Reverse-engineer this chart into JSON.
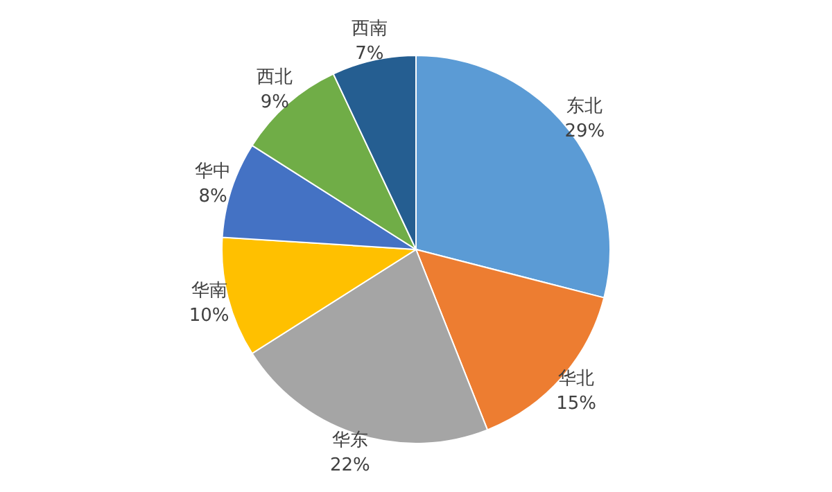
{
  "chart_data": {
    "type": "pie",
    "categories": [
      "东北",
      "华北",
      "华东",
      "华南",
      "华中",
      "西北",
      "西南"
    ],
    "values": [
      29,
      15,
      22,
      10,
      8,
      9,
      7
    ],
    "colors": [
      "#5b9bd5",
      "#ed7d31",
      "#a5a5a5",
      "#ffc000",
      "#4472c4",
      "#70ad47",
      "#255e91"
    ],
    "value_labels": [
      "29%",
      "15%",
      "22%",
      "10%",
      "8%",
      "9%",
      "7%"
    ]
  }
}
